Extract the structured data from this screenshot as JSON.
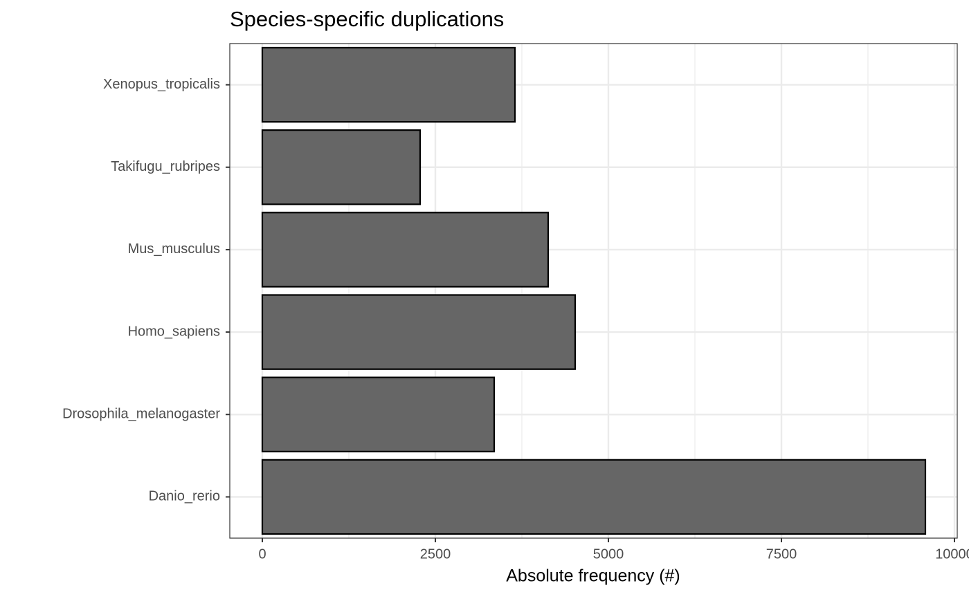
{
  "chart_data": {
    "type": "bar",
    "orientation": "horizontal",
    "title": "Species-specific duplications",
    "x_label": "Absolute frequency (#)",
    "categories": [
      "Danio_rerio",
      "Drosophila_melanogaster",
      "Homo_sapiens",
      "Mus_musculus",
      "Takifugu_rubripes",
      "Xenopus_tropicalis"
    ],
    "values": [
      9580,
      3350,
      4520,
      4130,
      2280,
      3650
    ],
    "color": "#666666",
    "edge_color": "#000000",
    "xlim": [
      -470,
      10040
    ],
    "xticks": [
      0,
      2500,
      5000,
      7500,
      10000
    ],
    "x_minor_ticks": [
      1250,
      3750,
      6250,
      8750
    ],
    "grid": true
  }
}
